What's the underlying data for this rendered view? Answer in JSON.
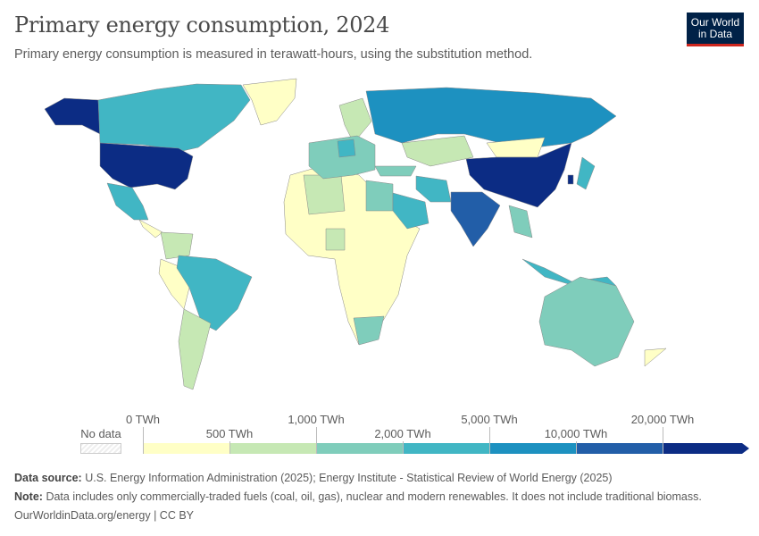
{
  "header": {
    "title": "Primary energy consumption, 2024",
    "subtitle": "Primary energy consumption is measured in terawatt-hours, using the substitution method.",
    "logo": "Our World in Data"
  },
  "legend": {
    "no_data": "No data",
    "no_data_color": "#ececec",
    "ticks": [
      "0 TWh",
      "500 TWh",
      "1,000 TWh",
      "2,000 TWh",
      "5,000 TWh",
      "10,000 TWh",
      "20,000 TWh"
    ],
    "bins": [
      {
        "range": "0–500 TWh",
        "color": "#ffffc6"
      },
      {
        "range": "500–1,000 TWh",
        "color": "#c6e8b4"
      },
      {
        "range": "1,000–2,000 TWh",
        "color": "#7fcdbb"
      },
      {
        "range": "2,000–5,000 TWh",
        "color": "#41b6c4"
      },
      {
        "range": "5,000–10,000 TWh",
        "color": "#1d91c0"
      },
      {
        "range": "10,000–20,000 TWh",
        "color": "#225ea8"
      },
      {
        "range": ">20,000 TWh",
        "color": "#0c2c84"
      }
    ]
  },
  "chart_data": {
    "type": "choropleth",
    "title": "Primary energy consumption, 2024",
    "unit": "TWh",
    "regions": [
      {
        "name": "Alaska (United States)",
        "bin": 6
      },
      {
        "name": "Canada",
        "bin": 3
      },
      {
        "name": "Greenland",
        "bin": 0
      },
      {
        "name": "United States",
        "bin": 6
      },
      {
        "name": "Mexico",
        "bin": 3
      },
      {
        "name": "Central America",
        "bin": 0
      },
      {
        "name": "Colombia / Venezuela",
        "bin": 1
      },
      {
        "name": "Peru / Bolivia",
        "bin": 0
      },
      {
        "name": "Brazil",
        "bin": 3
      },
      {
        "name": "Argentina",
        "bin": 1
      },
      {
        "name": "Africa (most countries)",
        "bin": 0
      },
      {
        "name": "Algeria",
        "bin": 1
      },
      {
        "name": "Egypt",
        "bin": 2
      },
      {
        "name": "Nigeria",
        "bin": 1
      },
      {
        "name": "South Africa",
        "bin": 2
      },
      {
        "name": "Scandinavia",
        "bin": 1
      },
      {
        "name": "Western Europe",
        "bin": 2
      },
      {
        "name": "Germany",
        "bin": 3
      },
      {
        "name": "Russia",
        "bin": 4
      },
      {
        "name": "Kazakhstan",
        "bin": 1
      },
      {
        "name": "Mongolia",
        "bin": 0
      },
      {
        "name": "China",
        "bin": 6
      },
      {
        "name": "Turkey",
        "bin": 2
      },
      {
        "name": "Iran",
        "bin": 3
      },
      {
        "name": "Saudi Arabia",
        "bin": 3
      },
      {
        "name": "India",
        "bin": 5
      },
      {
        "name": "Southeast Asia",
        "bin": 2
      },
      {
        "name": "Indonesia",
        "bin": 3
      },
      {
        "name": "Japan",
        "bin": 3
      },
      {
        "name": "South Korea",
        "bin": 6
      },
      {
        "name": "Australia",
        "bin": 2
      },
      {
        "name": "New Zealand",
        "bin": 0
      }
    ]
  },
  "footer": {
    "source_label": "Data source:",
    "source": "U.S. Energy Information Administration (2025); Energy Institute - Statistical Review of World Energy (2025)",
    "note_label": "Note:",
    "note": "Data includes only commercially-traded fuels (coal, oil, gas), nuclear and modern renewables. It does not include traditional biomass.",
    "url": "OurWorldinData.org/energy | CC BY"
  }
}
